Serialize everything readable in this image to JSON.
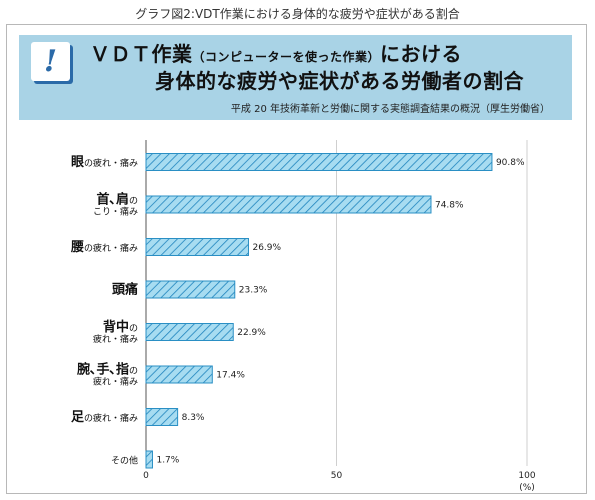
{
  "caption": "グラフ図2:VDT作業における身体的な疲労や症状がある割合",
  "banner": {
    "icon": "exclamation-badge-icon",
    "title_part1": "ＶＤＴ作業",
    "title_paren": "（コンピューターを使った作業）",
    "title_part2": "における",
    "title_line2": "身体的な疲労や症状がある労働者の割合",
    "source": "平成 20 年技術革新と労働に関する実態調査結果の概況（厚生労働省）"
  },
  "colors": {
    "banner": "#a9d3e6",
    "bar_fill": "#a7dcf1",
    "bar_stroke": "#2a8fc4",
    "hatch": "#1f84bd",
    "icon": "#2b6aa8"
  },
  "chart_data": {
    "type": "bar",
    "orientation": "horizontal",
    "categories": [
      {
        "main": "眼",
        "sub": "の疲れ・痛み",
        "sub2": ""
      },
      {
        "main": "首､肩",
        "sub": "の",
        "sub2": "こり・痛み"
      },
      {
        "main": "腰",
        "sub": "の疲れ・痛み",
        "sub2": ""
      },
      {
        "main": "頭痛",
        "sub": "",
        "sub2": ""
      },
      {
        "main": "背中",
        "sub": "の",
        "sub2": "疲れ・痛み"
      },
      {
        "main": "腕､手､指",
        "sub": "の",
        "sub2": "疲れ・痛み"
      },
      {
        "main": "足",
        "sub": "の疲れ・痛み",
        "sub2": ""
      },
      {
        "main": "",
        "sub": "その他",
        "sub2": ""
      }
    ],
    "values": [
      90.8,
      74.8,
      26.9,
      23.3,
      22.9,
      17.4,
      8.3,
      1.7
    ],
    "value_labels": [
      "90.8%",
      "74.8%",
      "26.9%",
      "23.3%",
      "22.9%",
      "17.4%",
      "8.3%",
      "1.7%"
    ],
    "xlim": [
      0,
      100
    ],
    "xticks": [
      "0",
      "50",
      "100"
    ],
    "xunit": "(%)",
    "grid": true
  }
}
